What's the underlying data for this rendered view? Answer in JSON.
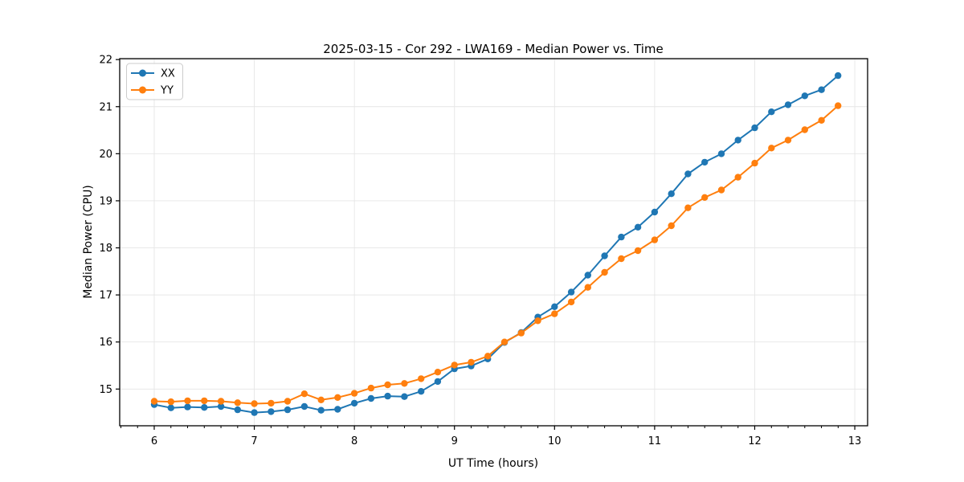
{
  "chart_data": {
    "type": "line",
    "title": "2025-03-15 - Cor 292 - LWA169 - Median Power vs. Time",
    "xlabel": "UT Time (hours)",
    "ylabel": "Median Power (CPU)",
    "xlim": [
      5.655,
      13.128
    ],
    "ylim": [
      14.22,
      22.02
    ],
    "xticks": [
      6,
      7,
      8,
      9,
      10,
      11,
      12,
      13
    ],
    "yticks": [
      15,
      16,
      17,
      18,
      19,
      20,
      21,
      22
    ],
    "minor_xtick_step": 0.16667,
    "grid": true,
    "grid_color": "#e6e6e6",
    "spine_color": "#000000",
    "legend_position": "upper left",
    "x": [
      6.0,
      6.167,
      6.333,
      6.5,
      6.667,
      6.833,
      7.0,
      7.167,
      7.333,
      7.5,
      7.667,
      7.833,
      8.0,
      8.167,
      8.333,
      8.5,
      8.667,
      8.833,
      9.0,
      9.167,
      9.333,
      9.5,
      9.667,
      9.833,
      10.0,
      10.167,
      10.333,
      10.5,
      10.667,
      10.833,
      11.0,
      11.167,
      11.333,
      11.5,
      11.667,
      11.833,
      12.0,
      12.167,
      12.333,
      12.5,
      12.667,
      12.833
    ],
    "series": [
      {
        "name": "XX",
        "color": "#1f77b4",
        "values": [
          14.67,
          14.6,
          14.62,
          14.61,
          14.63,
          14.56,
          14.5,
          14.52,
          14.56,
          14.63,
          14.55,
          14.57,
          14.7,
          14.8,
          14.85,
          14.84,
          14.95,
          15.16,
          15.43,
          15.49,
          15.64,
          15.99,
          16.2,
          16.53,
          16.75,
          17.06,
          17.42,
          17.83,
          18.23,
          18.44,
          18.76,
          19.15,
          19.57,
          19.82,
          20.0,
          20.29,
          20.55,
          20.89,
          21.04,
          21.23,
          21.36,
          21.66
        ]
      },
      {
        "name": "YY",
        "color": "#ff7f0e",
        "values": [
          14.74,
          14.73,
          14.75,
          14.75,
          14.74,
          14.71,
          14.69,
          14.7,
          14.74,
          14.9,
          14.77,
          14.82,
          14.91,
          15.02,
          15.09,
          15.12,
          15.22,
          15.36,
          15.51,
          15.57,
          15.7,
          16.0,
          16.19,
          16.45,
          16.6,
          16.85,
          17.16,
          17.48,
          17.77,
          17.94,
          18.17,
          18.47,
          18.85,
          19.07,
          19.23,
          19.5,
          19.8,
          20.12,
          20.29,
          20.51,
          20.71,
          21.02
        ]
      }
    ]
  }
}
